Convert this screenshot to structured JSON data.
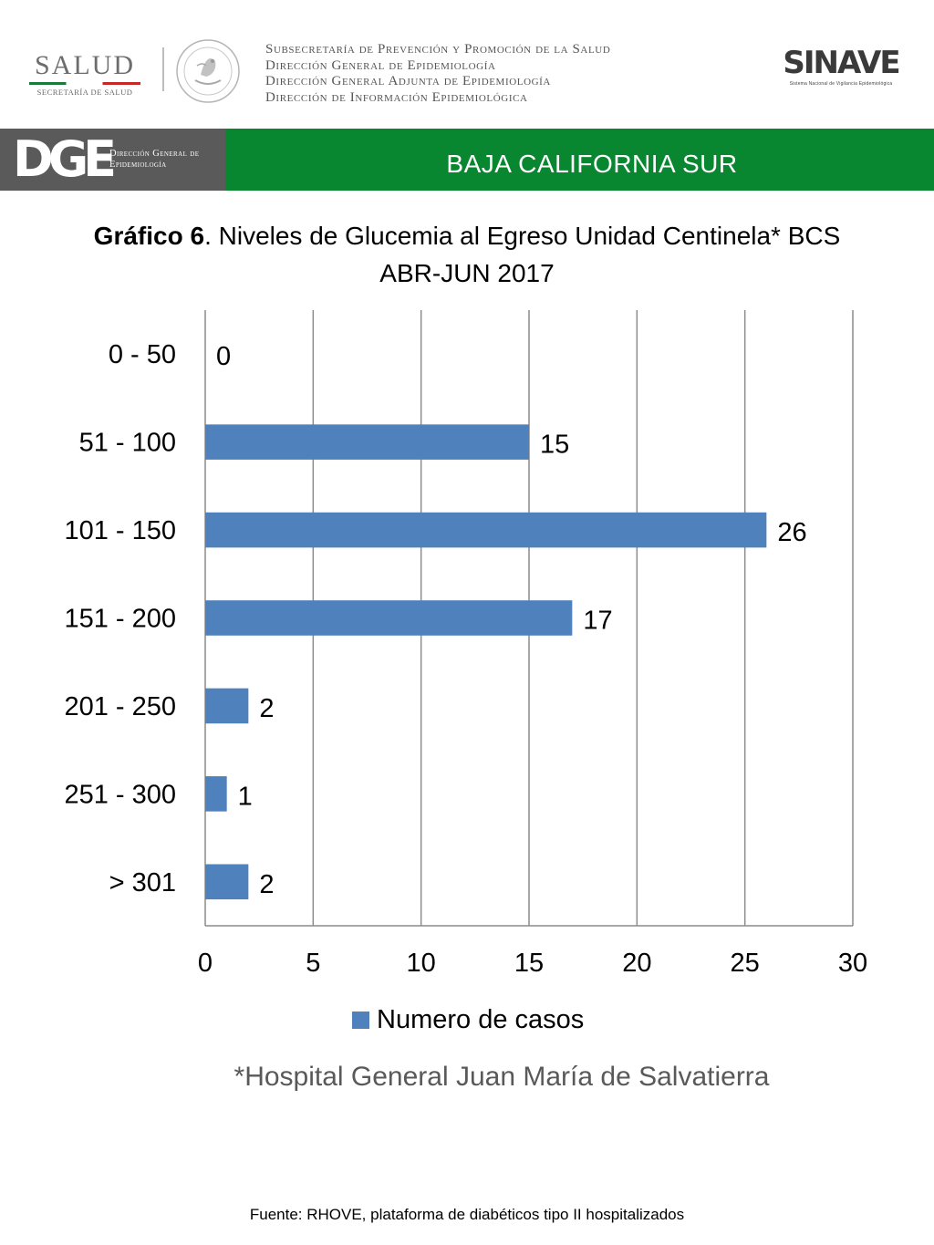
{
  "header": {
    "salud_logo": {
      "word": "SALUD",
      "subtitle": "SECRETARÍA DE SALUD"
    },
    "seal_icon": "mexican-coat-of-arms-seal",
    "department_lines": [
      "Subsecretaría de Prevención y Promoción de la Salud",
      "Dirección General de Epidemiología",
      "Dirección General Adjunta de Epidemiología",
      "Dirección de Información Epidemiológica"
    ],
    "sinave_logo": {
      "word": "SINAVE",
      "subtitle": "Sistema Nacional de Vigilancia Epidemiológica"
    }
  },
  "band": {
    "dge_mark": "DGE",
    "dge_text": "Dirección General de Epidemiología",
    "state_name": "BAJA CALIFORNIA SUR"
  },
  "colors": {
    "bar": "#4f81bd",
    "band_green": "#088730",
    "band_gray": "#5a5a5a",
    "grid": "#8c8c8c"
  },
  "chart_data": {
    "type": "bar",
    "orientation": "horizontal",
    "title_bold": "Gráfico 6",
    "title_rest": ". Niveles de Glucemia al Egreso  Unidad Centinela* BCS",
    "title_line2": "ABR-JUN 2017",
    "categories": [
      "0 - 50",
      "51 - 100",
      "101 - 150",
      "151 - 200",
      "201 - 250",
      "251 - 300",
      "> 301"
    ],
    "series": [
      {
        "name": "Numero de casos",
        "values": [
          0,
          15,
          26,
          17,
          2,
          1,
          2
        ]
      }
    ],
    "xlim": [
      0,
      30
    ],
    "xticks": [
      0,
      5,
      10,
      15,
      20,
      25,
      30
    ],
    "grid": true,
    "data_labels": true,
    "legend_position": "bottom",
    "xlabel": "",
    "ylabel": ""
  },
  "footnote": "*Hospital General Juan María de Salvatierra",
  "source": "Fuente: RHOVE, plataforma de diabéticos tipo II hospitalizados"
}
